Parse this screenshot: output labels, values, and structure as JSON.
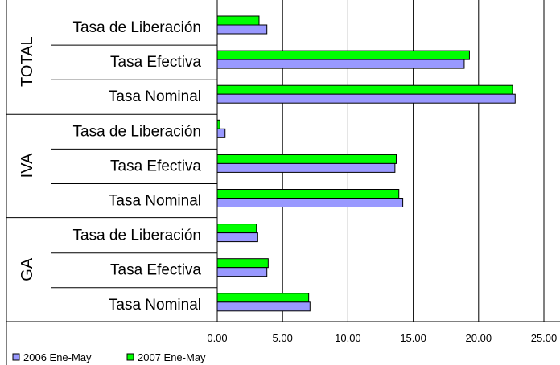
{
  "chart_data": {
    "type": "bar",
    "orientation": "horizontal",
    "groups": [
      {
        "name": "TOTAL",
        "categories": [
          "Tasa de Liberación",
          "Tasa Efectiva",
          "Tasa Nominal"
        ]
      },
      {
        "name": "IVA",
        "categories": [
          "Tasa de Liberación",
          "Tasa Efectiva",
          "Tasa Nominal"
        ]
      },
      {
        "name": "GA",
        "categories": [
          "Tasa de Liberación",
          "Tasa Efectiva",
          "Tasa Nominal"
        ]
      }
    ],
    "series": [
      {
        "name": "2006 Ene-May",
        "color": "#9999ff",
        "values": [
          3.8,
          18.9,
          22.8,
          0.6,
          13.6,
          14.2,
          3.1,
          3.8,
          7.1
        ]
      },
      {
        "name": "2007 Ene-May",
        "color": "#00ff00",
        "values": [
          3.2,
          19.3,
          22.6,
          0.2,
          13.7,
          13.9,
          3.0,
          3.9,
          7.0
        ]
      }
    ],
    "xlim": [
      0,
      25
    ],
    "xticks": [
      "0.00",
      "5.00",
      "10.00",
      "15.00",
      "20.00",
      "25.00"
    ],
    "grid": true,
    "legend_position": "bottom-left"
  }
}
